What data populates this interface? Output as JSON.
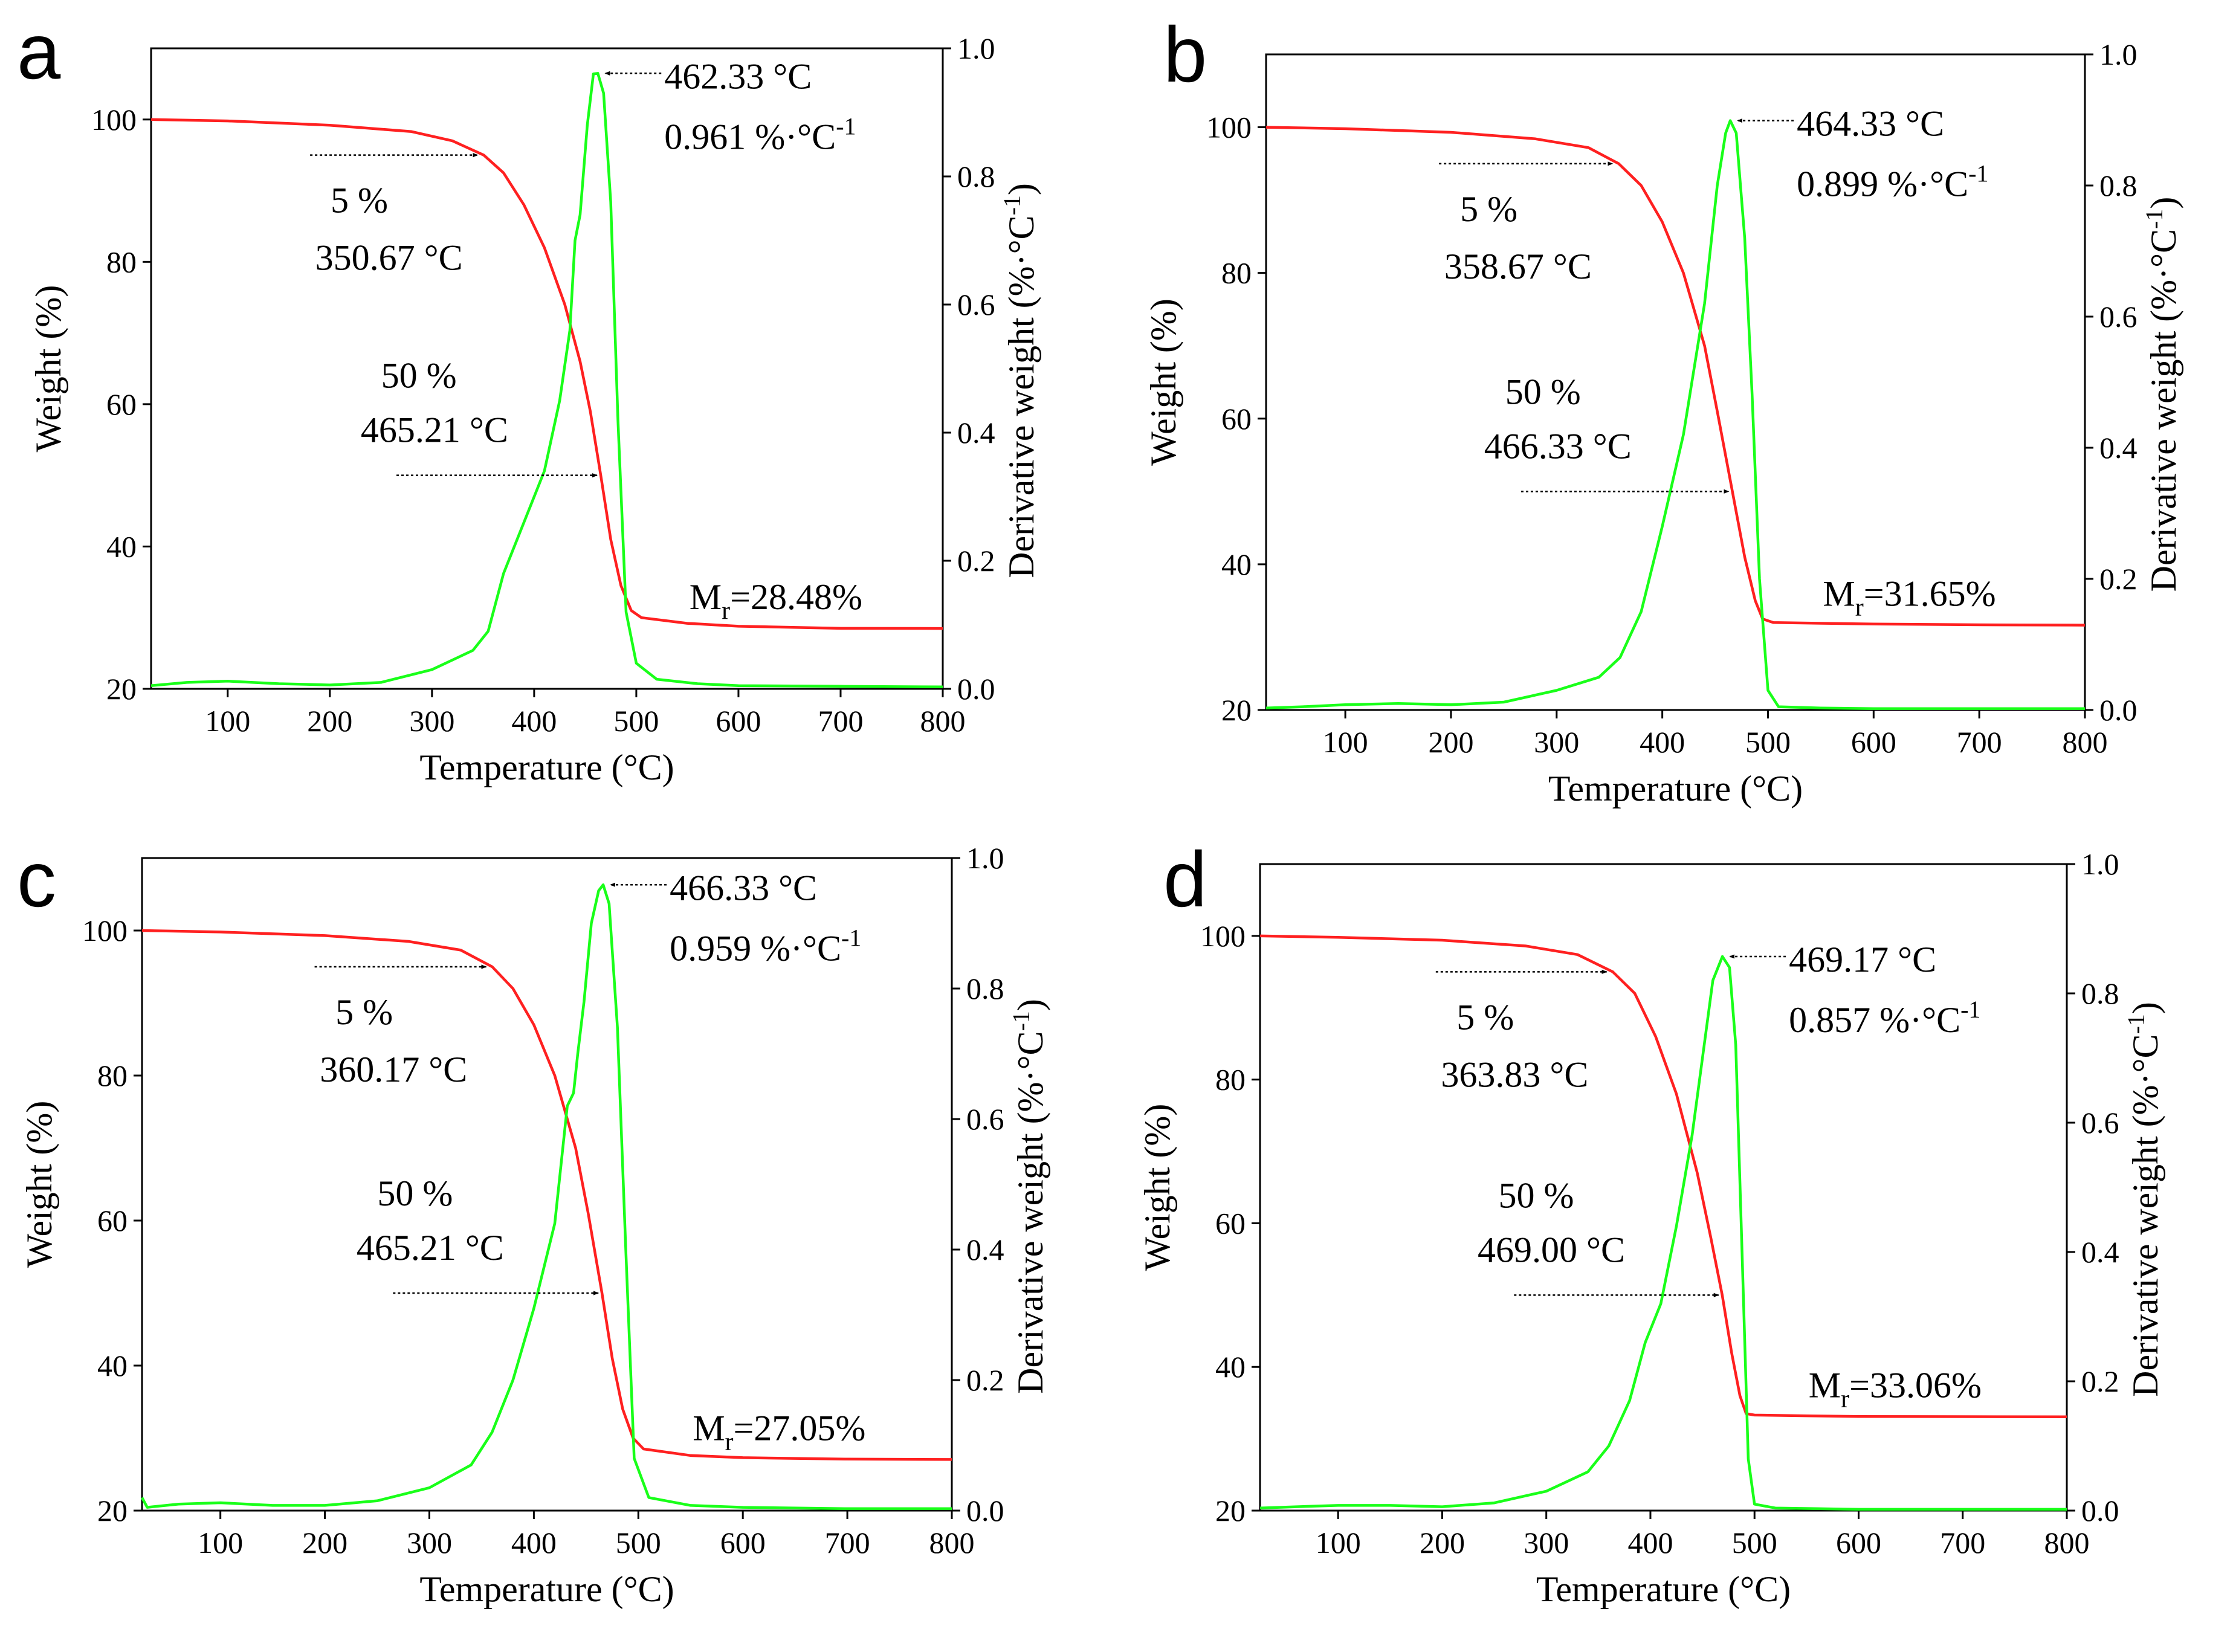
{
  "chart_data": [
    {
      "type": "line",
      "panel_label": "a",
      "xlabel": "Temperature (°C)",
      "ylabel": "Weight (%)",
      "y2label": "Derivative weight (%·°C",
      "y2label_sup": "-1",
      "y2label_end": ")",
      "xlim": [
        25,
        800
      ],
      "ylim": [
        20,
        110
      ],
      "y2lim": [
        0.0,
        1.0
      ],
      "xticks": [
        "100",
        "200",
        "300",
        "400",
        "500",
        "600",
        "700",
        "800"
      ],
      "yticks": [
        "20",
        "40",
        "60",
        "80",
        "100"
      ],
      "y2ticks": [
        "0.0",
        "0.2",
        "0.4",
        "0.6",
        "0.8",
        "1.0"
      ],
      "series": [
        {
          "name": "Weight",
          "axis": "left",
          "color": "#ff2020",
          "x": [
            25,
            100,
            200,
            280,
            320,
            350.67,
            370,
            390,
            410,
            430,
            445,
            455,
            465.21,
            475,
            485,
            495,
            505,
            550,
            600,
            700,
            800
          ],
          "y": [
            100.0,
            99.8,
            99.2,
            98.3,
            97.0,
            95.0,
            92.5,
            88.0,
            82.0,
            74.0,
            66.0,
            59.0,
            50.0,
            41.0,
            34.5,
            31.0,
            30.0,
            29.2,
            28.8,
            28.5,
            28.48
          ]
        },
        {
          "name": "Derivative weight",
          "axis": "right",
          "color": "#19ff19",
          "x": [
            25,
            60,
            100,
            150,
            200,
            250,
            300,
            340,
            355,
            370,
            390,
            410,
            425,
            435,
            440,
            445,
            452,
            458,
            462.33,
            468,
            475,
            482,
            490,
            500,
            520,
            560,
            600,
            700,
            800
          ],
          "y": [
            0.005,
            0.01,
            0.012,
            0.008,
            0.006,
            0.01,
            0.03,
            0.06,
            0.09,
            0.18,
            0.26,
            0.34,
            0.45,
            0.56,
            0.7,
            0.74,
            0.88,
            0.96,
            0.961,
            0.93,
            0.76,
            0.42,
            0.12,
            0.04,
            0.015,
            0.008,
            0.005,
            0.004,
            0.003
          ]
        }
      ],
      "annotations": {
        "peak_temp": "462.33 °C",
        "peak_rate": "0.961 %·°C",
        "peak_rate_sup": "-1",
        "t5_label": "5 %",
        "t5_value": "350.67 °C",
        "t50_label": "50 %",
        "t50_value": "465.21 °C",
        "residue_prefix": "M",
        "residue_sub": "r",
        "residue_value": "=28.48%"
      }
    },
    {
      "type": "line",
      "panel_label": "b",
      "xlabel": "Temperature (°C)",
      "ylabel": "Weight (%)",
      "y2label": "Derivative weight (%·°C",
      "y2label_sup": "-1",
      "y2label_end": ")",
      "xlim": [
        25,
        800
      ],
      "ylim": [
        20,
        110
      ],
      "y2lim": [
        0.0,
        1.0
      ],
      "xticks": [
        "100",
        "200",
        "300",
        "400",
        "500",
        "600",
        "700",
        "800"
      ],
      "yticks": [
        "20",
        "40",
        "60",
        "80",
        "100"
      ],
      "y2ticks": [
        "0.0",
        "0.2",
        "0.4",
        "0.6",
        "0.8",
        "1.0"
      ],
      "series": [
        {
          "name": "Weight",
          "axis": "left",
          "color": "#ff2020",
          "x": [
            25,
            100,
            200,
            280,
            330,
            358.67,
            380,
            400,
            420,
            440,
            452,
            466.33,
            478,
            488,
            495,
            505,
            550,
            600,
            700,
            800
          ],
          "y": [
            100.0,
            99.8,
            99.3,
            98.4,
            97.2,
            95.0,
            92.0,
            87.0,
            80.0,
            70.0,
            61.0,
            50.0,
            41.0,
            35.0,
            32.5,
            32.0,
            31.9,
            31.8,
            31.7,
            31.65
          ]
        },
        {
          "name": "Derivative weight",
          "axis": "right",
          "color": "#19ff19",
          "x": [
            25,
            60,
            100,
            150,
            200,
            250,
            300,
            340,
            360,
            380,
            400,
            420,
            440,
            452,
            460,
            464.33,
            470,
            478,
            485,
            492,
            500,
            510,
            550,
            600,
            700,
            800
          ],
          "y": [
            0.003,
            0.005,
            0.008,
            0.01,
            0.008,
            0.012,
            0.03,
            0.05,
            0.08,
            0.15,
            0.28,
            0.42,
            0.62,
            0.8,
            0.88,
            0.899,
            0.88,
            0.72,
            0.48,
            0.2,
            0.03,
            0.005,
            0.003,
            0.002,
            0.002,
            0.002
          ]
        }
      ],
      "annotations": {
        "peak_temp": "464.33 °C",
        "peak_rate": "0.899 %·°C",
        "peak_rate_sup": "-1",
        "t5_label": "5 %",
        "t5_value": "358.67 °C",
        "t50_label": "50 %",
        "t50_value": "466.33 °C",
        "residue_prefix": "M",
        "residue_sub": "r",
        "residue_value": "=31.65%"
      }
    },
    {
      "type": "line",
      "panel_label": "c",
      "xlabel": "Temperature (°C)",
      "ylabel": "Weight (%)",
      "y2label": "Derivative weight (%·°C",
      "y2label_sup": "-1",
      "y2label_end": ")",
      "xlim": [
        25,
        800
      ],
      "ylim": [
        20,
        110
      ],
      "y2lim": [
        0.0,
        1.0
      ],
      "xticks": [
        "100",
        "200",
        "300",
        "400",
        "500",
        "600",
        "700",
        "800"
      ],
      "yticks": [
        "20",
        "40",
        "60",
        "80",
        "100"
      ],
      "y2ticks": [
        "0.0",
        "0.2",
        "0.4",
        "0.6",
        "0.8",
        "1.0"
      ],
      "series": [
        {
          "name": "Weight",
          "axis": "left",
          "color": "#ff2020",
          "x": [
            25,
            100,
            200,
            280,
            330,
            360.17,
            380,
            400,
            420,
            440,
            452,
            465.21,
            475,
            485,
            495,
            505,
            550,
            600,
            700,
            800
          ],
          "y": [
            100.0,
            99.8,
            99.3,
            98.5,
            97.3,
            95.0,
            92.0,
            87.0,
            80.0,
            70.0,
            61.0,
            50.0,
            41.0,
            34.0,
            30.0,
            28.5,
            27.6,
            27.3,
            27.1,
            27.05
          ]
        },
        {
          "name": "Derivative weight",
          "axis": "right",
          "color": "#19ff19",
          "x": [
            25,
            30,
            60,
            100,
            150,
            200,
            250,
            300,
            340,
            360,
            380,
            400,
            420,
            432,
            438,
            442,
            448,
            455,
            462,
            466.33,
            472,
            480,
            488,
            496,
            510,
            550,
            600,
            700,
            800
          ],
          "y": [
            0.02,
            0.005,
            0.01,
            0.012,
            0.008,
            0.008,
            0.015,
            0.035,
            0.07,
            0.12,
            0.2,
            0.31,
            0.44,
            0.62,
            0.64,
            0.7,
            0.78,
            0.9,
            0.95,
            0.959,
            0.93,
            0.74,
            0.4,
            0.08,
            0.02,
            0.008,
            0.005,
            0.003,
            0.003
          ]
        }
      ],
      "annotations": {
        "peak_temp": "466.33 °C",
        "peak_rate": "0.959 %·°C",
        "peak_rate_sup": "-1",
        "t5_label": "5 %",
        "t5_value": "360.17 °C",
        "t50_label": "50 %",
        "t50_value": "465.21 °C",
        "residue_prefix": "M",
        "residue_sub": "r",
        "residue_value": "=27.05%"
      }
    },
    {
      "type": "line",
      "panel_label": "d",
      "xlabel": "Temperature (°C)",
      "ylabel": "Weight (%)",
      "y2label": "Derivative weight (%·°C",
      "y2label_sup": "-1",
      "y2label_end": ")",
      "xlim": [
        25,
        800
      ],
      "ylim": [
        20,
        110
      ],
      "y2lim": [
        0.0,
        1.0
      ],
      "xticks": [
        "100",
        "200",
        "300",
        "400",
        "500",
        "600",
        "700",
        "800"
      ],
      "yticks": [
        "20",
        "40",
        "60",
        "80",
        "100"
      ],
      "y2ticks": [
        "0.0",
        "0.2",
        "0.4",
        "0.6",
        "0.8",
        "1.0"
      ],
      "series": [
        {
          "name": "Weight",
          "axis": "left",
          "color": "#ff2020",
          "x": [
            25,
            100,
            200,
            280,
            330,
            363.83,
            385,
            405,
            425,
            445,
            458,
            469.0,
            478,
            486,
            492,
            500,
            550,
            600,
            700,
            800
          ],
          "y": [
            100.0,
            99.8,
            99.4,
            98.6,
            97.4,
            95.0,
            92.0,
            86.0,
            78.0,
            67.0,
            58.0,
            50.0,
            42.0,
            36.0,
            33.5,
            33.3,
            33.2,
            33.1,
            33.08,
            33.06
          ]
        },
        {
          "name": "Derivative weight",
          "axis": "right",
          "color": "#19ff19",
          "x": [
            25,
            60,
            100,
            150,
            200,
            250,
            300,
            340,
            360,
            380,
            395,
            410,
            425,
            440,
            450,
            460,
            469.17,
            476,
            482,
            488,
            494,
            500,
            520,
            560,
            600,
            700,
            800
          ],
          "y": [
            0.004,
            0.006,
            0.008,
            0.008,
            0.006,
            0.012,
            0.03,
            0.06,
            0.1,
            0.17,
            0.26,
            0.32,
            0.44,
            0.58,
            0.7,
            0.82,
            0.857,
            0.84,
            0.72,
            0.4,
            0.08,
            0.01,
            0.004,
            0.003,
            0.002,
            0.002,
            0.002
          ]
        }
      ],
      "annotations": {
        "peak_temp": "469.17  °C",
        "peak_rate": "0.857 %·°C",
        "peak_rate_sup": "-1",
        "t5_label": "5 %",
        "t5_value": "363.83 °C",
        "t50_label": "50 %",
        "t50_value": "469.00 °C",
        "residue_prefix": "M",
        "residue_sub": "r",
        "residue_value": "=33.06%"
      }
    }
  ]
}
